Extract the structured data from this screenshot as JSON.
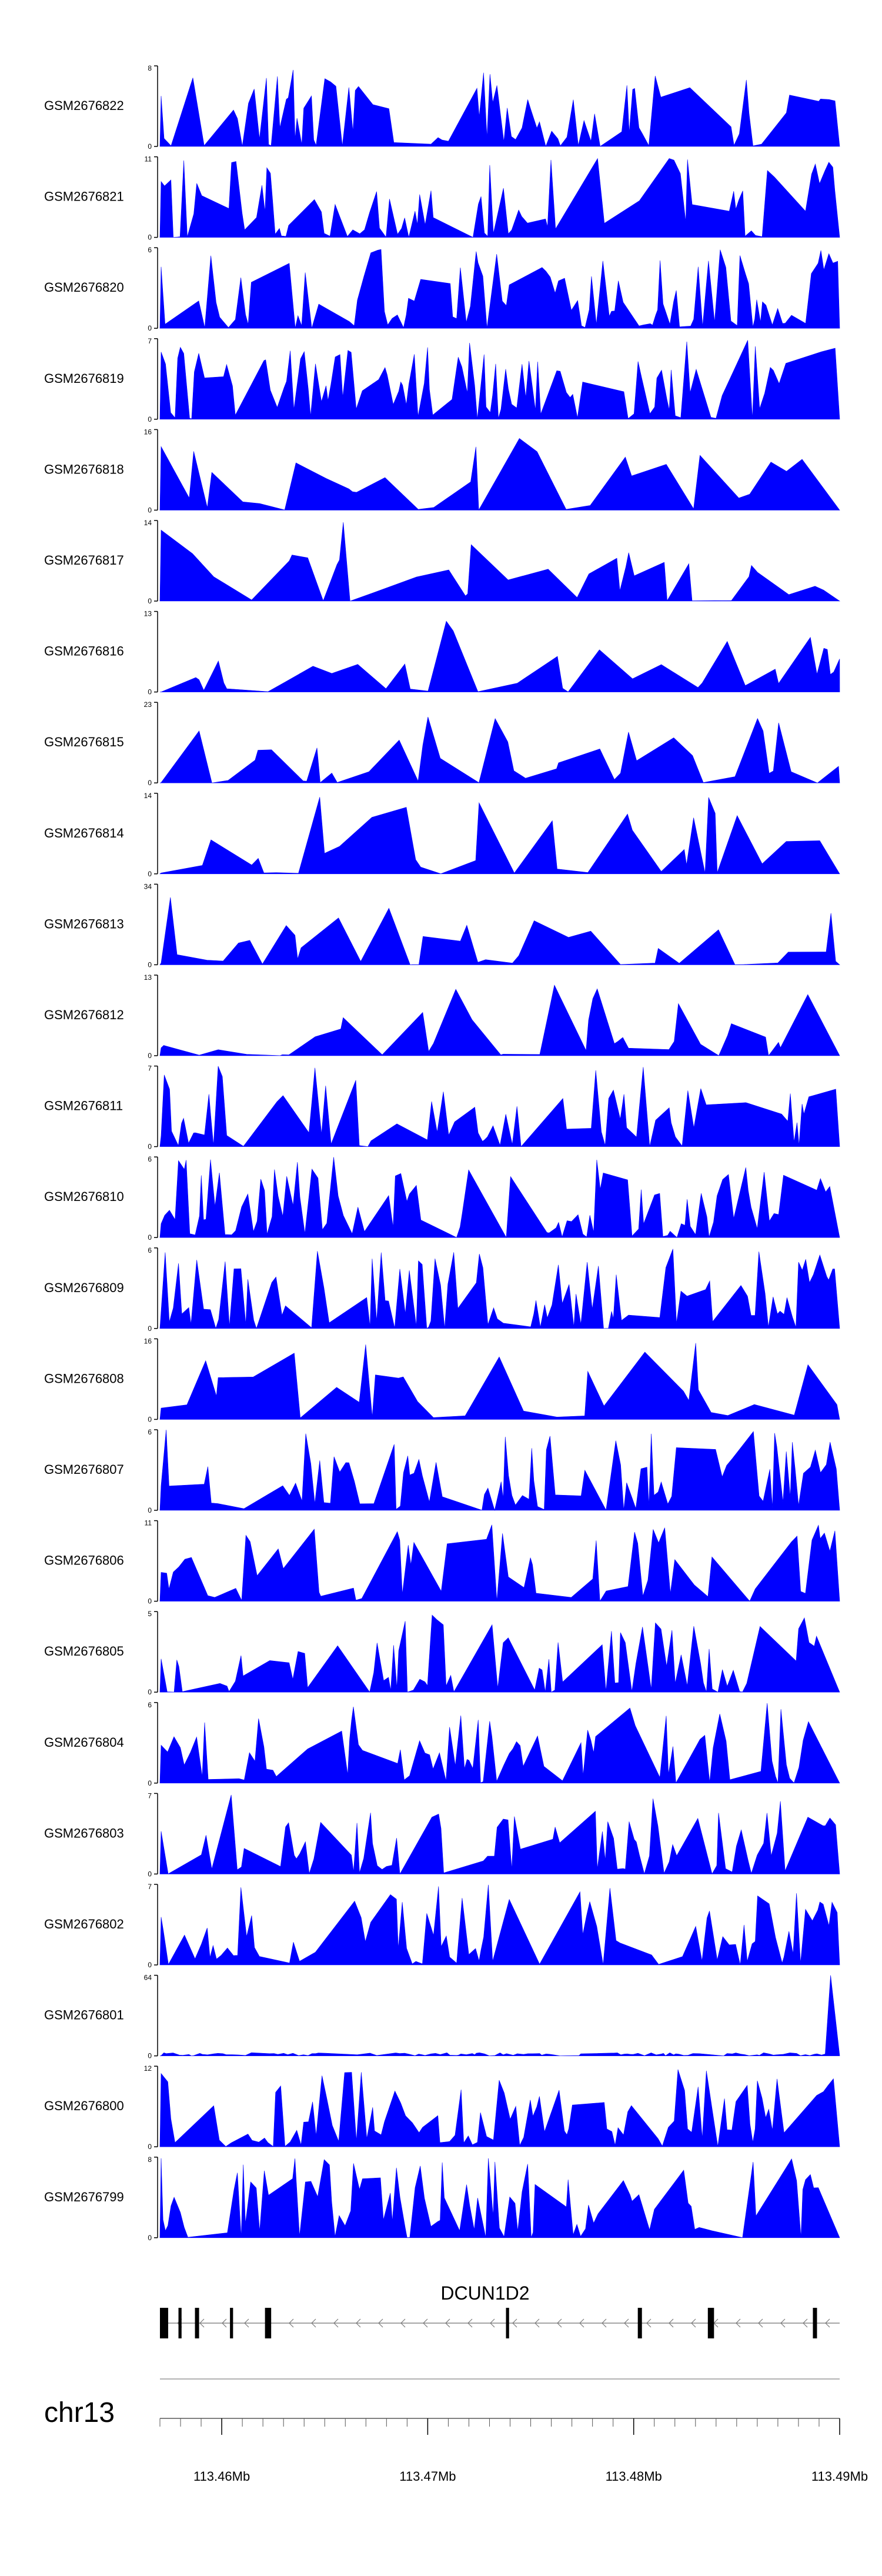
{
  "chart_data": {
    "type": "area",
    "title": "",
    "color": "#0000ff",
    "chromosome": "chr13",
    "xlim_mb": [
      113.457,
      113.49
    ],
    "x_ticks": [
      {
        "value": 113.46,
        "label": "113.46Mb"
      },
      {
        "value": 113.47,
        "label": "113.47Mb"
      },
      {
        "value": 113.48,
        "label": "113.48Mb"
      },
      {
        "value": 113.49,
        "label": "113.49Mb"
      }
    ],
    "tracks": [
      {
        "name": "GSM2676822",
        "ymax": 8,
        "ymin": 0,
        "seed": 22,
        "density": 0.82,
        "end_rise": 0.75
      },
      {
        "name": "GSM2676821",
        "ymax": 11,
        "ymin": 0,
        "seed": 21,
        "density": 0.8,
        "end_rise": 0.95
      },
      {
        "name": "GSM2676820",
        "ymax": 6,
        "ymin": 0,
        "seed": 20,
        "density": 0.92,
        "end_rise": 0.9
      },
      {
        "name": "GSM2676819",
        "ymax": 7,
        "ymin": 0,
        "seed": 19,
        "density": 0.92,
        "end_rise": 1.0
      },
      {
        "name": "GSM2676818",
        "ymax": 16,
        "ymin": 0,
        "seed": 18,
        "density": 0.35,
        "end_rise": 0.95
      },
      {
        "name": "GSM2676817",
        "ymax": 14,
        "ymin": 0,
        "seed": 17,
        "density": 0.35,
        "end_rise": 0.2
      },
      {
        "name": "GSM2676816",
        "ymax": 13,
        "ymin": 0,
        "seed": 16,
        "density": 0.38,
        "end_rise": 0.25
      },
      {
        "name": "GSM2676815",
        "ymax": 23,
        "ymin": 0,
        "seed": 15,
        "density": 0.22,
        "end_rise": 0.0
      },
      {
        "name": "GSM2676814",
        "ymax": 14,
        "ymin": 0,
        "seed": 14,
        "density": 0.35,
        "end_rise": 0.45
      },
      {
        "name": "GSM2676813",
        "ymax": 34,
        "ymin": 0,
        "seed": 13,
        "density": 0.25,
        "end_rise": 0.05
      },
      {
        "name": "GSM2676812",
        "ymax": 13,
        "ymin": 0,
        "seed": 12,
        "density": 0.5,
        "end_rise": 0.9
      },
      {
        "name": "GSM2676811",
        "ymax": 7,
        "ymin": 0,
        "seed": 11,
        "density": 0.8,
        "end_rise": 0.9
      },
      {
        "name": "GSM2676810",
        "ymax": 6,
        "ymin": 0,
        "seed": 10,
        "density": 0.9,
        "end_rise": 0.8
      },
      {
        "name": "GSM2676809",
        "ymax": 6,
        "ymin": 0,
        "seed": 9,
        "density": 0.9,
        "end_rise": 0.9
      },
      {
        "name": "GSM2676808",
        "ymax": 16,
        "ymin": 0,
        "seed": 8,
        "density": 0.33,
        "end_rise": 0.2
      },
      {
        "name": "GSM2676807",
        "ymax": 6,
        "ymin": 0,
        "seed": 7,
        "density": 0.9,
        "end_rise": 0.75
      },
      {
        "name": "GSM2676806",
        "ymax": 11,
        "ymin": 0,
        "seed": 6,
        "density": 0.78,
        "end_rise": 0.95
      },
      {
        "name": "GSM2676805",
        "ymax": 5,
        "ymin": 0,
        "seed": 5,
        "density": 0.92,
        "end_rise": 0.8
      },
      {
        "name": "GSM2676804",
        "ymax": 6,
        "ymin": 0,
        "seed": 4,
        "density": 0.88,
        "end_rise": 0.95
      },
      {
        "name": "GSM2676803",
        "ymax": 7,
        "ymin": 0,
        "seed": 3,
        "density": 0.9,
        "end_rise": 0.85
      },
      {
        "name": "GSM2676802",
        "ymax": 7,
        "ymin": 0,
        "seed": 2,
        "density": 0.88,
        "end_rise": 0.8
      },
      {
        "name": "GSM2676801",
        "ymax": 64,
        "ymin": 0,
        "seed": 1,
        "density": 0.9,
        "end_rise": 1.0
      },
      {
        "name": "GSM2676800",
        "ymax": 12,
        "ymin": 0,
        "seed": 100,
        "density": 0.88,
        "end_rise": 0.95
      },
      {
        "name": "GSM2676799",
        "ymax": 8,
        "ymin": 0,
        "seed": 99,
        "density": 0.9,
        "end_rise": 0.85
      }
    ],
    "gene": {
      "name": "DCUN1D2",
      "strand": "-",
      "start_mb": 113.457,
      "end_mb": 113.49,
      "exons": [
        {
          "start_mb": 113.457,
          "end_mb": 113.4574
        },
        {
          "start_mb": 113.4579,
          "end_mb": 113.45805
        },
        {
          "start_mb": 113.4587,
          "end_mb": 113.4589
        },
        {
          "start_mb": 113.4604,
          "end_mb": 113.46055
        },
        {
          "start_mb": 113.4621,
          "end_mb": 113.4624
        },
        {
          "start_mb": 113.4738,
          "end_mb": 113.47395
        },
        {
          "start_mb": 113.4802,
          "end_mb": 113.4804
        },
        {
          "start_mb": 113.4836,
          "end_mb": 113.4839
        },
        {
          "start_mb": 113.4887,
          "end_mb": 113.4889
        }
      ]
    }
  }
}
